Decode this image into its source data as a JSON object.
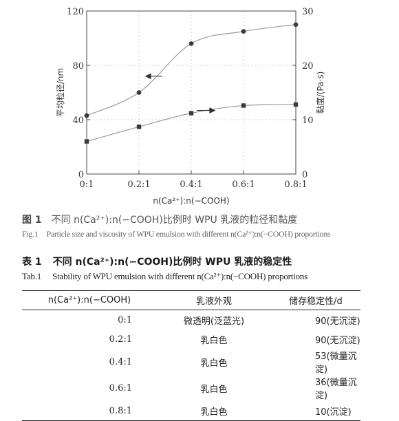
{
  "figure": {
    "caption_cn_label": "图 1",
    "caption_cn": "不同 n(Ca²⁺):n(−COOH)比例时 WPU 乳液的粒径和黏度",
    "caption_en_label": "Fig.1",
    "caption_en": "Particle size and viscosity of WPU emulsion with different n(Ca²⁺):n(−COOH) proportions"
  },
  "chart_data": {
    "type": "line",
    "xlabel": "n(Ca²⁺):n(−COOH)",
    "ylabel_left": "平均粒径/nm",
    "ylabel_right": "黏度/(Pa·s)",
    "x_tick_labels": [
      "0:1",
      "0.2:1",
      "0.4:1",
      "0.6:1",
      "0.8:1"
    ],
    "x": [
      0,
      0.2,
      0.4,
      0.6,
      0.8
    ],
    "xlim": [
      0,
      0.8
    ],
    "ylim_left": [
      0,
      120
    ],
    "ylim_right": [
      0,
      30
    ],
    "y_ticks_left": [
      0,
      40,
      80,
      120
    ],
    "y_ticks_right": [
      0,
      10,
      20,
      30
    ],
    "series": [
      {
        "axis": "left",
        "marker": "circle",
        "values": [
          43,
          60,
          96,
          105,
          110
        ],
        "arrow": "left"
      },
      {
        "axis": "right",
        "marker": "square",
        "values": [
          6,
          8.7,
          11.2,
          12.6,
          12.8
        ],
        "arrow": "right"
      }
    ]
  },
  "table": {
    "title_cn_label": "表 1",
    "title_cn": "不同 n(Ca²⁺):n(−COOH)比例时 WPU 乳液的稳定性",
    "title_en_label": "Tab.1",
    "title_en": "Stability of WPU emulsion with different n(Ca²⁺):n(−COOH) proportions",
    "headers": [
      "n(Ca²⁺):n(−COOH)",
      "乳液外观",
      "储存稳定性/d"
    ],
    "rows": [
      [
        "0:1",
        "微透明(泛蓝光)",
        "90(无沉淀)"
      ],
      [
        "0.2:1",
        "乳白色",
        "90(无沉淀)"
      ],
      [
        "0.4:1",
        "乳白色",
        "53(微量沉淀)"
      ],
      [
        "0.6:1",
        "乳白色",
        "36(微量沉淀)"
      ],
      [
        "0.8:1",
        "乳白色",
        "10(沉淀)"
      ]
    ]
  }
}
